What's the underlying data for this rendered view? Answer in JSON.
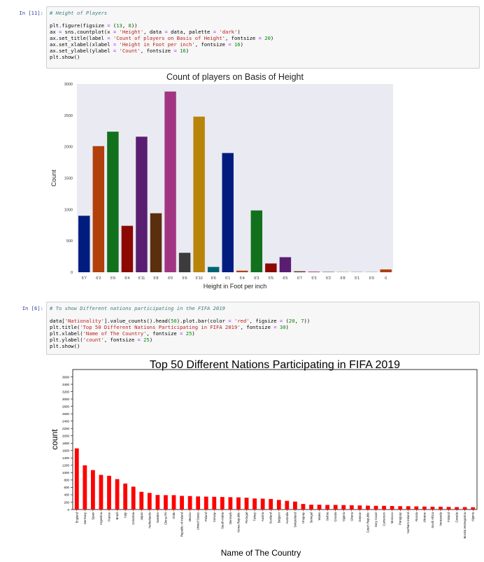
{
  "cells": [
    {
      "prompt": "In [11]:",
      "code": [
        [
          {
            "t": "# Height of Players",
            "c": "cm"
          }
        ],
        [],
        [
          {
            "t": "plt.figure(figsize ",
            "c": "fn"
          },
          {
            "t": "=",
            "c": "op"
          },
          {
            "t": " (",
            "c": "fn"
          },
          {
            "t": "13",
            "c": "nu"
          },
          {
            "t": ", ",
            "c": "fn"
          },
          {
            "t": "8",
            "c": "nu"
          },
          {
            "t": "))",
            "c": "fn"
          }
        ],
        [
          {
            "t": "ax ",
            "c": "fn"
          },
          {
            "t": "=",
            "c": "op"
          },
          {
            "t": " sns.countplot(x ",
            "c": "fn"
          },
          {
            "t": "=",
            "c": "op"
          },
          {
            "t": " ",
            "c": "fn"
          },
          {
            "t": "'Height'",
            "c": "st"
          },
          {
            "t": ", data ",
            "c": "fn"
          },
          {
            "t": "=",
            "c": "op"
          },
          {
            "t": " data, palette ",
            "c": "fn"
          },
          {
            "t": "=",
            "c": "op"
          },
          {
            "t": " ",
            "c": "fn"
          },
          {
            "t": "'dark'",
            "c": "st"
          },
          {
            "t": ")",
            "c": "fn"
          }
        ],
        [
          {
            "t": "ax.set_title(label ",
            "c": "fn"
          },
          {
            "t": "=",
            "c": "op"
          },
          {
            "t": " ",
            "c": "fn"
          },
          {
            "t": "'Count of players on Basis of Height'",
            "c": "st"
          },
          {
            "t": ", fontsize ",
            "c": "fn"
          },
          {
            "t": "=",
            "c": "op"
          },
          {
            "t": " ",
            "c": "fn"
          },
          {
            "t": "20",
            "c": "nu"
          },
          {
            "t": ")",
            "c": "fn"
          }
        ],
        [
          {
            "t": "ax.set_xlabel(xlabel ",
            "c": "fn"
          },
          {
            "t": "=",
            "c": "op"
          },
          {
            "t": " ",
            "c": "fn"
          },
          {
            "t": "'Height in Foot per inch'",
            "c": "st"
          },
          {
            "t": ", fontsize ",
            "c": "fn"
          },
          {
            "t": "=",
            "c": "op"
          },
          {
            "t": " ",
            "c": "fn"
          },
          {
            "t": "16",
            "c": "nu"
          },
          {
            "t": ")",
            "c": "fn"
          }
        ],
        [
          {
            "t": "ax.set_ylabel(ylabel ",
            "c": "fn"
          },
          {
            "t": "=",
            "c": "op"
          },
          {
            "t": " ",
            "c": "fn"
          },
          {
            "t": "'Count'",
            "c": "st"
          },
          {
            "t": ", fontsize ",
            "c": "fn"
          },
          {
            "t": "=",
            "c": "op"
          },
          {
            "t": " ",
            "c": "fn"
          },
          {
            "t": "16",
            "c": "nu"
          },
          {
            "t": ")",
            "c": "fn"
          }
        ],
        [
          {
            "t": "plt.show()",
            "c": "fn"
          }
        ]
      ]
    },
    {
      "prompt": "In [6]:",
      "code": [
        [
          {
            "t": "# To show Different nations participating in the FIFA 2019",
            "c": "cm"
          }
        ],
        [],
        [
          {
            "t": "data[",
            "c": "fn"
          },
          {
            "t": "'Nationality'",
            "c": "st"
          },
          {
            "t": "].value_counts().head(",
            "c": "fn"
          },
          {
            "t": "50",
            "c": "nu"
          },
          {
            "t": ").plot.bar(color ",
            "c": "fn"
          },
          {
            "t": "=",
            "c": "op"
          },
          {
            "t": " ",
            "c": "fn"
          },
          {
            "t": "'red'",
            "c": "st"
          },
          {
            "t": ", figsize ",
            "c": "fn"
          },
          {
            "t": "=",
            "c": "op"
          },
          {
            "t": " (",
            "c": "fn"
          },
          {
            "t": "20",
            "c": "nu"
          },
          {
            "t": ", ",
            "c": "fn"
          },
          {
            "t": "7",
            "c": "nu"
          },
          {
            "t": "))",
            "c": "fn"
          }
        ],
        [
          {
            "t": "plt.title(",
            "c": "fn"
          },
          {
            "t": "'Top 50 Different Nations Participating in FIFA 2019'",
            "c": "st"
          },
          {
            "t": ", fontsize ",
            "c": "fn"
          },
          {
            "t": "=",
            "c": "op"
          },
          {
            "t": " ",
            "c": "fn"
          },
          {
            "t": "30",
            "c": "nu"
          },
          {
            "t": ")",
            "c": "fn"
          }
        ],
        [
          {
            "t": "plt.xlabel(",
            "c": "fn"
          },
          {
            "t": "'Name of The Country'",
            "c": "st"
          },
          {
            "t": ", fontsize ",
            "c": "fn"
          },
          {
            "t": "=",
            "c": "op"
          },
          {
            "t": " ",
            "c": "fn"
          },
          {
            "t": "25",
            "c": "nu"
          },
          {
            "t": ")",
            "c": "fn"
          }
        ],
        [
          {
            "t": "plt.ylabel(",
            "c": "fn"
          },
          {
            "t": "'count'",
            "c": "st"
          },
          {
            "t": ", fontsize ",
            "c": "fn"
          },
          {
            "t": "=",
            "c": "op"
          },
          {
            "t": " ",
            "c": "fn"
          },
          {
            "t": "25",
            "c": "nu"
          },
          {
            "t": ")",
            "c": "fn"
          }
        ],
        [
          {
            "t": "plt.show()",
            "c": "fn"
          }
        ]
      ]
    }
  ],
  "colors": {
    "comment": "#408080",
    "string": "#ba2121",
    "number": "#008800",
    "operator": "#aa22ff",
    "prompt": "#303f9f",
    "axes_bg": "#eaeaf2",
    "red": "#ff0000"
  },
  "chart_data": [
    {
      "type": "bar",
      "title": "Count of players on Basis of Height",
      "xlabel": "Height in Foot per inch",
      "ylabel": "Count",
      "ylim": [
        0,
        3000
      ],
      "yticks": [
        0,
        500,
        1000,
        1500,
        2000,
        2500,
        3000
      ],
      "grid": false,
      "categories": [
        "5'7",
        "6'2",
        "5'9",
        "6'4",
        "5'11",
        "5'8",
        "6'0",
        "5'6",
        "5'10",
        "6'6",
        "6'1",
        "5'4",
        "6'3",
        "5'5",
        "6'5",
        "6'7",
        "5'3",
        "5'2",
        "6'8",
        "5'1",
        "6'9",
        "0"
      ],
      "values": [
        900,
        2010,
        2240,
        740,
        2160,
        940,
        2880,
        310,
        2480,
        85,
        1900,
        25,
        985,
        140,
        240,
        15,
        10,
        5,
        4,
        3,
        2,
        45
      ],
      "colors": [
        "#001c7f",
        "#b1400d",
        "#12711c",
        "#8c0800",
        "#591e71",
        "#592f0d",
        "#a23582",
        "#3c3c3c",
        "#b8850a",
        "#006374",
        "#001c7f",
        "#b1400d",
        "#12711c",
        "#8c0800",
        "#591e71",
        "#592f0d",
        "#a23582",
        "#3c3c3c",
        "#b8850a",
        "#006374",
        "#001c7f",
        "#b1400d"
      ]
    },
    {
      "type": "bar",
      "title": "Top 50 Different Nations Participating in FIFA 2019",
      "xlabel": "Name of The Country",
      "ylabel": "count",
      "ylim": [
        0,
        3800
      ],
      "yticks": [
        0,
        200,
        400,
        600,
        800,
        1000,
        1200,
        1400,
        1600,
        1800,
        2000,
        2200,
        2400,
        2600,
        2800,
        3000,
        3200,
        3400,
        3600
      ],
      "color": "#ff0000",
      "categories": [
        "England",
        "Germany",
        "Spain",
        "Argentina",
        "France",
        "Brazil",
        "Italy",
        "Colombia",
        "Japan",
        "Netherlands",
        "Sweden",
        "China PR",
        "Chile",
        "Republic of Ireland",
        "Mexico",
        "United States",
        "Poland",
        "Norway",
        "Saudi Arabia",
        "Denmark",
        "Korea Republic",
        "Portugal",
        "Turkey",
        "Austria",
        "Scotland",
        "Belgium",
        "Australia",
        "Switzerland",
        "Uruguay",
        "Senegal",
        "Wales",
        "Serbia",
        "Croatia",
        "Nigeria",
        "Ghana",
        "Greece",
        "Czech Republic",
        "Ivory Coast",
        "Cameroon",
        "Morocco",
        "Paraguay",
        "Northern Ireland",
        "Russia",
        "Ukraine",
        "South Africa",
        "Venezuela",
        "Finland",
        "Canada",
        "Bosnia Herzegovina",
        "Algeria"
      ],
      "values": [
        1660,
        1200,
        1070,
        940,
        915,
        825,
        705,
        620,
        480,
        450,
        395,
        390,
        390,
        370,
        365,
        355,
        350,
        345,
        340,
        335,
        330,
        320,
        300,
        295,
        285,
        260,
        235,
        215,
        150,
        130,
        130,
        125,
        125,
        120,
        115,
        110,
        105,
        100,
        100,
        95,
        90,
        90,
        85,
        80,
        75,
        75,
        70,
        65,
        65,
        60
      ]
    }
  ]
}
